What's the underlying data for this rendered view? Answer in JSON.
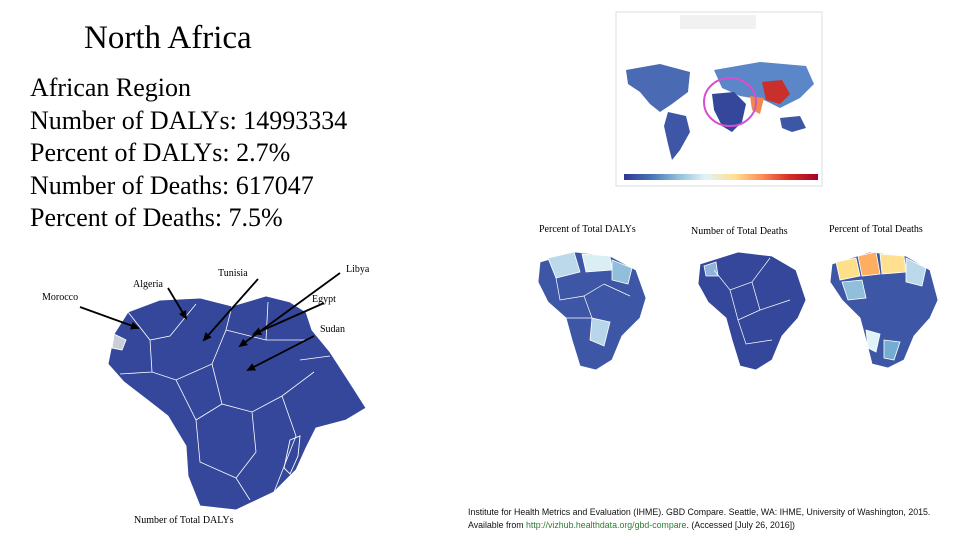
{
  "slide": {
    "title": "North Africa",
    "stats": {
      "heading": "African Region",
      "dalys_number": "Number of DALYs: 14993334",
      "dalys_percent": "Percent of DALYs: 2.7%",
      "deaths_number": "Number of Deaths: 617047",
      "deaths_percent": "Percent of Deaths: 7.5%"
    }
  },
  "main_map": {
    "caption": "Number of Total DALYs",
    "country_labels": {
      "morocco": "Morocco",
      "algeria": "Algeria",
      "tunisia": "Tunisia",
      "libya": "Libya",
      "egypt": "Egypt",
      "sudan": "Sudan"
    },
    "fill_color": "#34479b",
    "highlight_color": "#c9ced8"
  },
  "small_maps": [
    {
      "caption": "Percent of Total DALYs"
    },
    {
      "caption": "Number of Total Deaths"
    },
    {
      "caption": "Percent of Total Deaths"
    }
  ],
  "world_map": {
    "circle_color": "#d64fd0",
    "legend_gradient": [
      "#313695",
      "#4575b4",
      "#91bfdb",
      "#e0f3f8",
      "#fee090",
      "#fc8d59",
      "#d73027",
      "#a50026"
    ]
  },
  "citation": {
    "text_before": "Institute for Health Metrics and Evaluation (IHME). GBD Compare. Seattle, WA: IHME, University of Washington, 2015. Available from ",
    "link": "http://vizhub.healthdata.org/gbd-compare",
    "text_after": ". (Accessed [July 26, 2016])"
  }
}
